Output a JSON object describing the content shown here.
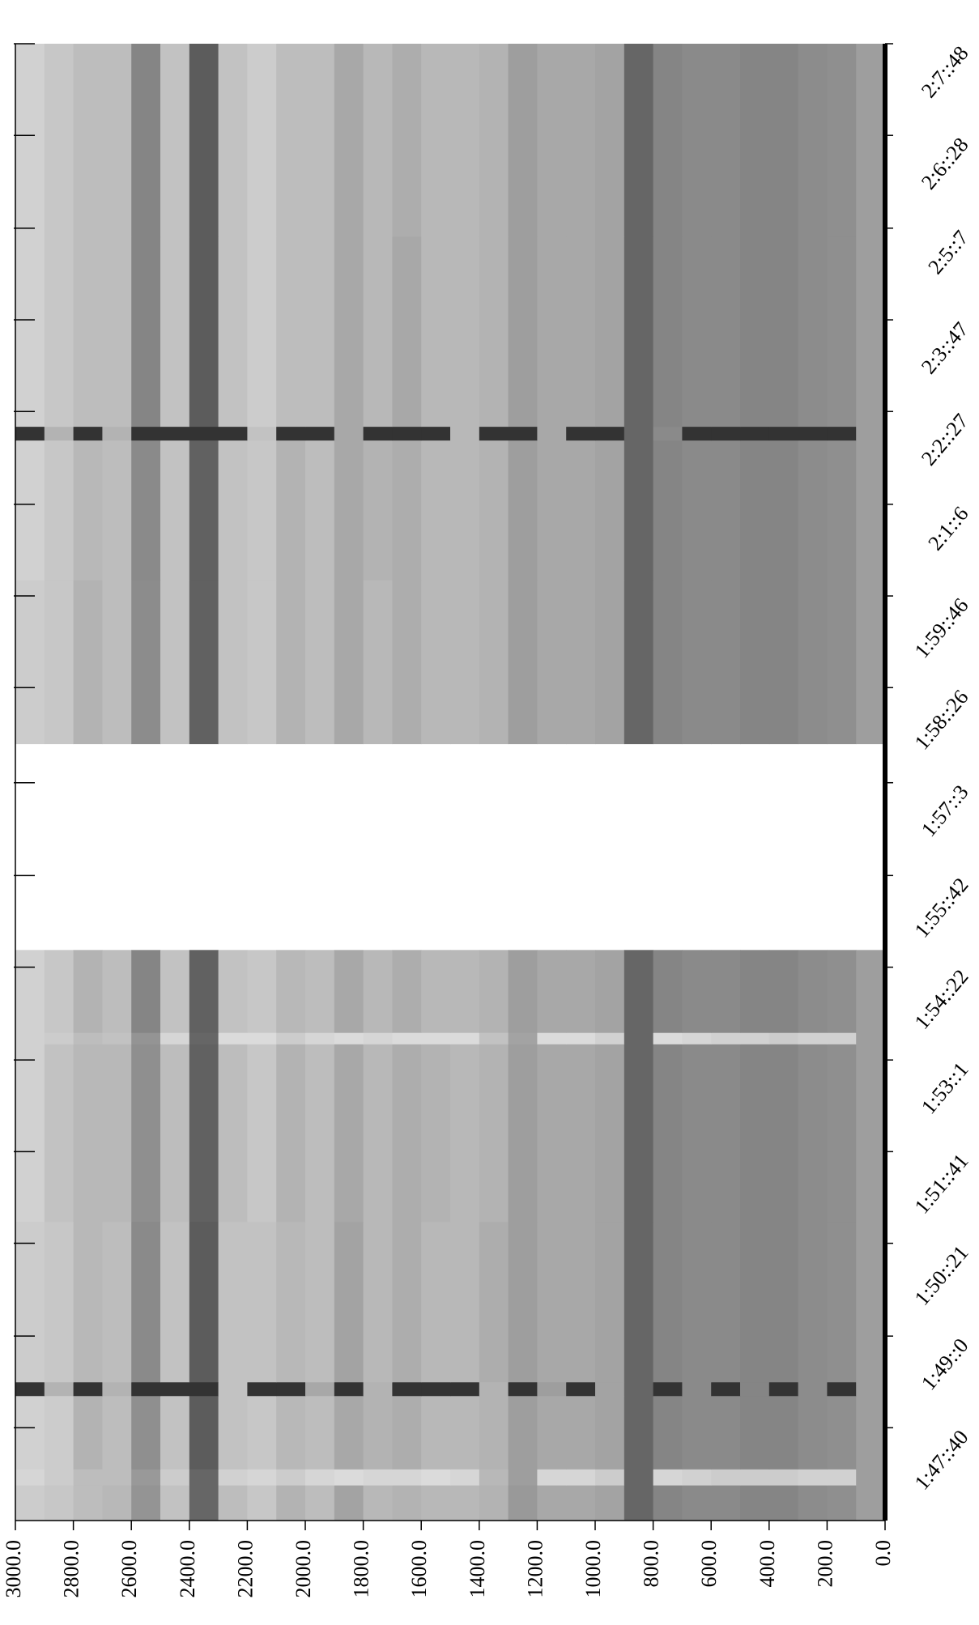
{
  "chart_data": {
    "type": "heatmap",
    "x_bins": [
      3000,
      2900,
      2800,
      2700,
      2600,
      2500,
      2400,
      2300,
      2200,
      2100,
      2000,
      1900,
      1800,
      1700,
      1600,
      1500,
      1400,
      1300,
      1200,
      1100,
      1000,
      900,
      800,
      700,
      600,
      500,
      400,
      300,
      200,
      100,
      0
    ],
    "y_bins": [
      6379,
      6410,
      6424,
      6488,
      6500,
      6640,
      6795,
      6805,
      6877,
      7057,
      7200,
      7322,
      7334,
      7500,
      7668
    ],
    "values": [
      [
        80,
        78,
        74,
        72,
        58,
        76,
        40,
        74,
        78,
        70,
        74,
        64,
        72,
        70,
        72,
        72,
        70,
        60,
        66,
        66,
        64,
        40,
        52,
        54,
        54,
        52,
        52,
        55,
        56,
        62
      ],
      [
        84,
        80,
        74,
        74,
        60,
        80,
        40,
        82,
        84,
        80,
        84,
        86,
        84,
        84,
        86,
        84,
        72,
        62,
        84,
        84,
        80,
        40,
        84,
        82,
        80,
        80,
        80,
        82,
        82,
        62
      ],
      [
        82,
        80,
        70,
        74,
        56,
        76,
        36,
        76,
        78,
        72,
        74,
        66,
        70,
        68,
        72,
        72,
        70,
        62,
        66,
        66,
        64,
        40,
        52,
        54,
        54,
        52,
        52,
        55,
        56,
        62
      ],
      [
        20,
        70,
        20,
        70,
        20,
        20,
        20,
        76,
        20,
        20,
        66,
        20,
        70,
        20,
        20,
        20,
        70,
        20,
        62,
        20,
        64,
        40,
        20,
        54,
        20,
        52,
        20,
        55,
        20,
        62
      ],
      [
        80,
        78,
        72,
        74,
        54,
        76,
        36,
        76,
        76,
        72,
        74,
        64,
        72,
        68,
        72,
        72,
        68,
        62,
        66,
        66,
        64,
        40,
        52,
        54,
        54,
        52,
        52,
        55,
        56,
        62
      ],
      [
        82,
        76,
        72,
        72,
        56,
        74,
        38,
        74,
        78,
        70,
        74,
        66,
        72,
        68,
        70,
        72,
        70,
        62,
        66,
        66,
        64,
        40,
        52,
        54,
        54,
        52,
        52,
        55,
        56,
        62
      ],
      [
        82,
        80,
        74,
        76,
        58,
        84,
        40,
        86,
        86,
        80,
        84,
        86,
        84,
        86,
        86,
        86,
        76,
        64,
        86,
        86,
        82,
        40,
        86,
        84,
        82,
        82,
        80,
        82,
        82,
        62
      ],
      [
        82,
        78,
        70,
        74,
        52,
        76,
        38,
        76,
        78,
        72,
        74,
        66,
        72,
        68,
        72,
        72,
        70,
        62,
        66,
        66,
        64,
        40,
        52,
        54,
        54,
        52,
        52,
        55,
        56,
        62
      ],
      [
        null,
        null,
        null,
        null,
        null,
        null,
        null,
        null,
        null,
        null,
        null,
        null,
        null,
        null,
        null,
        null,
        null,
        null,
        null,
        null,
        null,
        null,
        null,
        null,
        null,
        null,
        null,
        null,
        null,
        null
      ],
      [
        80,
        78,
        70,
        74,
        55,
        76,
        38,
        76,
        78,
        70,
        74,
        66,
        72,
        68,
        72,
        72,
        70,
        62,
        66,
        66,
        64,
        40,
        52,
        54,
        54,
        52,
        52,
        55,
        56,
        62
      ],
      [
        82,
        78,
        72,
        74,
        54,
        76,
        38,
        76,
        78,
        70,
        74,
        66,
        70,
        68,
        72,
        72,
        70,
        62,
        66,
        66,
        64,
        40,
        52,
        54,
        54,
        52,
        52,
        55,
        56,
        62
      ],
      [
        20,
        70,
        20,
        70,
        20,
        20,
        20,
        20,
        76,
        20,
        20,
        66,
        20,
        20,
        20,
        72,
        20,
        20,
        66,
        20,
        20,
        40,
        54,
        20,
        20,
        20,
        20,
        20,
        20,
        62
      ],
      [
        82,
        78,
        74,
        74,
        52,
        76,
        36,
        76,
        80,
        74,
        74,
        66,
        72,
        66,
        72,
        72,
        70,
        62,
        66,
        66,
        64,
        40,
        52,
        54,
        54,
        52,
        52,
        55,
        56,
        62
      ],
      [
        82,
        78,
        74,
        74,
        52,
        76,
        36,
        76,
        80,
        74,
        74,
        66,
        72,
        68,
        72,
        72,
        70,
        62,
        66,
        66,
        64,
        40,
        52,
        54,
        54,
        52,
        52,
        55,
        56,
        62
      ]
    ],
    "xlim": [
      3000,
      0
    ],
    "xticks": [
      {
        "value": 3000,
        "label": "3000.0"
      },
      {
        "value": 2800,
        "label": "2800.0"
      },
      {
        "value": 2600,
        "label": "2600.0"
      },
      {
        "value": 2400,
        "label": "2400.0"
      },
      {
        "value": 2200,
        "label": "2200.0"
      },
      {
        "value": 2000,
        "label": "2000.0"
      },
      {
        "value": 1800,
        "label": "1800.0"
      },
      {
        "value": 1600,
        "label": "1600.0"
      },
      {
        "value": 1400,
        "label": "1400.0"
      },
      {
        "value": 1200,
        "label": "1200.0"
      },
      {
        "value": 1000,
        "label": "1000.0"
      },
      {
        "value": 800,
        "label": "800.0"
      },
      {
        "value": 600,
        "label": "600.0"
      },
      {
        "value": 400,
        "label": "400.0"
      },
      {
        "value": 200,
        "label": "200.0"
      },
      {
        "value": 0,
        "label": "0.0"
      }
    ],
    "ylim": [
      6379,
      7668
    ],
    "yticks": [
      {
        "value": 6460,
        "label": "1:47::40"
      },
      {
        "value": 6540,
        "label": "1:49::0"
      },
      {
        "value": 6621,
        "label": "1:50::21"
      },
      {
        "value": 6701,
        "label": "1:51::41"
      },
      {
        "value": 6781,
        "label": "1:53::1"
      },
      {
        "value": 6862,
        "label": "1:54::22"
      },
      {
        "value": 6942,
        "label": "1:55::42"
      },
      {
        "value": 7023,
        "label": "1:57::3"
      },
      {
        "value": 7106,
        "label": "1:58::26"
      },
      {
        "value": 7186,
        "label": "1:59::46"
      },
      {
        "value": 7266,
        "label": "2:1::6"
      },
      {
        "value": 7347,
        "label": "2:2::27"
      },
      {
        "value": 7427,
        "label": "2:3::47"
      },
      {
        "value": 7507,
        "label": "2:5::7"
      },
      {
        "value": 7588,
        "label": "2:6::28"
      },
      {
        "value": 7668,
        "label": "2:7::48"
      }
    ]
  }
}
